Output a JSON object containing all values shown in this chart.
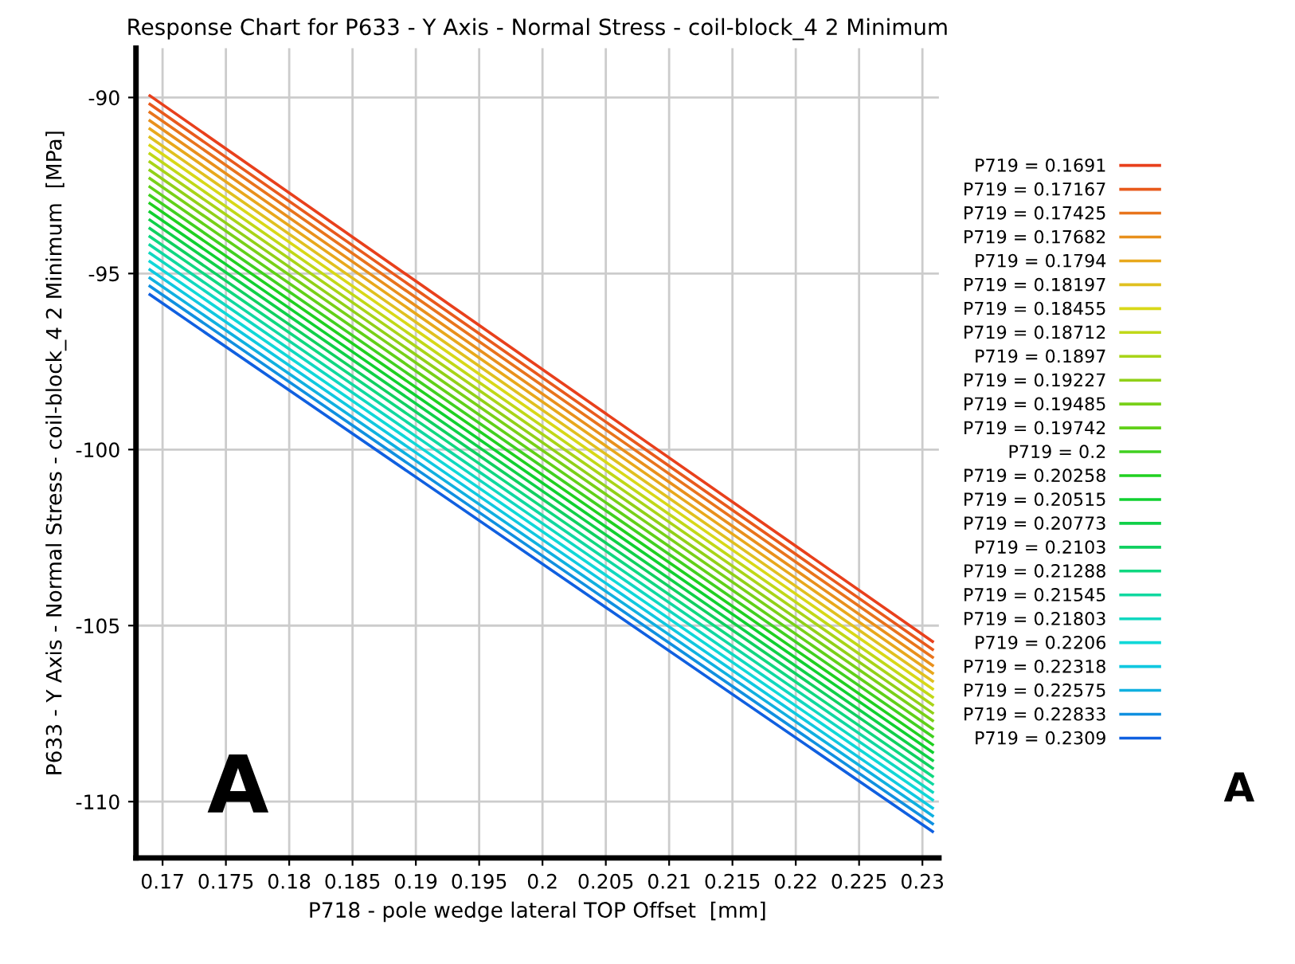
{
  "chart_data": {
    "type": "line",
    "title": "Response Chart for P633 - Y Axis - Normal Stress - coil-block_4 2 Minimum",
    "xlabel": "P718 - pole wedge lateral TOP Offset  [mm]",
    "ylabel": "P633 - Y Axis - Normal Stress - coil-block_4 2 Minimum  [MPa]",
    "x": [
      0.169,
      0.2308
    ],
    "series": [
      {
        "name": "P719 = 0.1691",
        "color": "#e8401c",
        "values": [
          -89.95,
          -105.45
        ]
      },
      {
        "name": "P719 = 0.17167",
        "color": "#e85a1c",
        "values": [
          -90.19,
          -105.68
        ]
      },
      {
        "name": "P719 = 0.17425",
        "color": "#e8741c",
        "values": [
          -90.42,
          -105.9
        ]
      },
      {
        "name": "P719 = 0.17682",
        "color": "#e8901c",
        "values": [
          -90.66,
          -106.13
        ]
      },
      {
        "name": "P719 = 0.1794",
        "color": "#e8a81c",
        "values": [
          -90.89,
          -106.35
        ]
      },
      {
        "name": "P719 = 0.18197",
        "color": "#e0c020",
        "values": [
          -91.13,
          -106.58
        ]
      },
      {
        "name": "P719 = 0.18455",
        "color": "#d8d818",
        "values": [
          -91.36,
          -106.8
        ]
      },
      {
        "name": "P719 = 0.18712",
        "color": "#c0d818",
        "values": [
          -91.6,
          -107.03
        ]
      },
      {
        "name": "P719 = 0.1897",
        "color": "#a8d418",
        "values": [
          -91.83,
          -107.25
        ]
      },
      {
        "name": "P719 = 0.19227",
        "color": "#90d018",
        "values": [
          -92.07,
          -107.48
        ]
      },
      {
        "name": "P719 = 0.19485",
        "color": "#78d018",
        "values": [
          -92.3,
          -107.7
        ]
      },
      {
        "name": "P719 = 0.19742",
        "color": "#60d018",
        "values": [
          -92.54,
          -107.93
        ]
      },
      {
        "name": "P719 = 0.2",
        "color": "#40d020",
        "values": [
          -92.78,
          -108.15
        ]
      },
      {
        "name": "P719 = 0.20258",
        "color": "#20d020",
        "values": [
          -93.01,
          -108.38
        ]
      },
      {
        "name": "P719 = 0.20515",
        "color": "#10d030",
        "values": [
          -93.25,
          -108.6
        ]
      },
      {
        "name": "P719 = 0.20773",
        "color": "#10d048",
        "values": [
          -93.48,
          -108.83
        ]
      },
      {
        "name": "P719 = 0.2103",
        "color": "#10d060",
        "values": [
          -93.72,
          -109.05
        ]
      },
      {
        "name": "P719 = 0.21288",
        "color": "#10d880",
        "values": [
          -93.95,
          -109.28
        ]
      },
      {
        "name": "P719 = 0.21545",
        "color": "#10d8a0",
        "values": [
          -94.19,
          -109.5
        ]
      },
      {
        "name": "P719 = 0.21803",
        "color": "#10d8c0",
        "values": [
          -94.42,
          -109.73
        ]
      },
      {
        "name": "P719 = 0.2206",
        "color": "#10d8d8",
        "values": [
          -94.66,
          -109.95
        ]
      },
      {
        "name": "P719 = 0.22318",
        "color": "#10c8e0",
        "values": [
          -94.89,
          -110.18
        ]
      },
      {
        "name": "P719 = 0.22575",
        "color": "#10b0e0",
        "values": [
          -95.13,
          -110.4
        ]
      },
      {
        "name": "P719 = 0.22833",
        "color": "#1090e0",
        "values": [
          -95.36,
          -110.63
        ]
      },
      {
        "name": "P719 = 0.2309",
        "color": "#1060e0",
        "values": [
          -95.6,
          -110.85
        ]
      }
    ],
    "xlim": [
      0.1679,
      0.2313
    ],
    "ylim": [
      -111.6,
      -88.6
    ],
    "xticks": [
      0.17,
      0.175,
      0.18,
      0.185,
      0.19,
      0.195,
      0.2,
      0.205,
      0.21,
      0.215,
      0.22,
      0.225,
      0.23
    ],
    "yticks": [
      -90,
      -95,
      -100,
      -105,
      -110
    ],
    "grid": true,
    "legend": "right",
    "marker": "none",
    "line_style": "solid",
    "annotations": [
      "A",
      "A"
    ]
  }
}
